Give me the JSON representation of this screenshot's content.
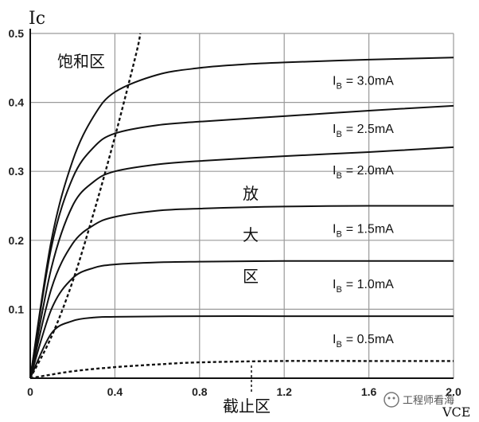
{
  "chart_data": {
    "type": "line",
    "xlabel": "VCE",
    "ylabel": "Ic",
    "xlim": [
      0,
      2.0
    ],
    "ylim": [
      0,
      0.5
    ],
    "x_ticks": [
      "0",
      "0.4",
      "0.8",
      "1.2",
      "1.6",
      "2.0"
    ],
    "y_ticks": [
      "0.1",
      "0.2",
      "0.3",
      "0.4",
      "0.5"
    ],
    "grid": true,
    "series": [
      {
        "name": "I_B = 0.5mA",
        "sub": "B",
        "label": "= 0.5mA",
        "x": [
          0,
          0.1,
          0.2,
          0.3,
          0.4,
          0.8,
          1.2,
          1.6,
          2.0
        ],
        "y": [
          0,
          0.065,
          0.083,
          0.088,
          0.089,
          0.09,
          0.09,
          0.09,
          0.09
        ]
      },
      {
        "name": "I_B = 1.0mA",
        "sub": "B",
        "label": "= 1.0mA",
        "x": [
          0,
          0.1,
          0.2,
          0.3,
          0.4,
          0.6,
          0.8,
          1.2,
          1.6,
          2.0
        ],
        "y": [
          0,
          0.1,
          0.145,
          0.16,
          0.165,
          0.168,
          0.169,
          0.17,
          0.17,
          0.17
        ]
      },
      {
        "name": "I_B = 1.5mA",
        "sub": "B",
        "label": "= 1.5mA",
        "x": [
          0,
          0.1,
          0.2,
          0.3,
          0.4,
          0.6,
          0.8,
          1.2,
          1.6,
          2.0
        ],
        "y": [
          0,
          0.13,
          0.195,
          0.222,
          0.234,
          0.243,
          0.246,
          0.249,
          0.25,
          0.25
        ]
      },
      {
        "name": "I_B = 2.0mA",
        "sub": "B",
        "label": "= 2.0mA",
        "x": [
          0,
          0.1,
          0.2,
          0.3,
          0.4,
          0.6,
          0.8,
          1.2,
          1.6,
          2.0
        ],
        "y": [
          0,
          0.16,
          0.25,
          0.285,
          0.3,
          0.31,
          0.315,
          0.322,
          0.328,
          0.335
        ]
      },
      {
        "name": "I_B = 2.5mA",
        "sub": "B",
        "label": "= 2.5mA",
        "x": [
          0,
          0.1,
          0.2,
          0.3,
          0.4,
          0.6,
          0.8,
          1.2,
          1.6,
          2.0
        ],
        "y": [
          0,
          0.19,
          0.29,
          0.335,
          0.355,
          0.367,
          0.372,
          0.38,
          0.388,
          0.395
        ]
      },
      {
        "name": "I_B = 3.0mA",
        "sub": "B",
        "label": "= 3.0mA",
        "x": [
          0,
          0.1,
          0.2,
          0.3,
          0.4,
          0.6,
          0.8,
          1.0,
          1.2,
          1.6,
          2.0
        ],
        "y": [
          0,
          0.2,
          0.315,
          0.38,
          0.415,
          0.44,
          0.45,
          0.455,
          0.458,
          0.462,
          0.465
        ]
      },
      {
        "name": "saturation-boundary",
        "dashed": true,
        "x": [
          0,
          0.1,
          0.2,
          0.3,
          0.4,
          0.5,
          0.52
        ],
        "y": [
          0,
          0.06,
          0.14,
          0.24,
          0.35,
          0.47,
          0.5
        ]
      },
      {
        "name": "cutoff-boundary",
        "dashed": true,
        "x": [
          0,
          0.2,
          0.4,
          0.6,
          0.8,
          1.2,
          1.6,
          2.0
        ],
        "y": [
          0,
          0.01,
          0.016,
          0.02,
          0.023,
          0.025,
          0.025,
          0.025
        ]
      }
    ],
    "curve_label_prefix": "I",
    "annotations": {
      "saturation": "饱和区",
      "amplification": [
        "放",
        "大",
        "区"
      ],
      "cutoff": "截止区"
    }
  },
  "watermark": "工程师看海"
}
